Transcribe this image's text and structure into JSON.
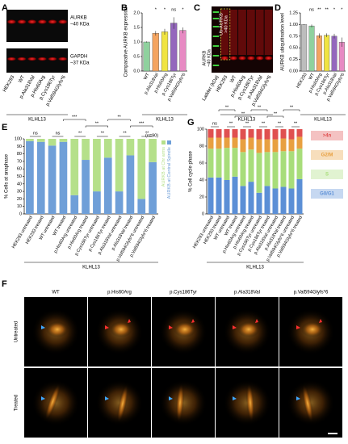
{
  "panel_labels": [
    "A",
    "B",
    "C",
    "D",
    "E",
    "F",
    "G"
  ],
  "blot_a": {
    "labels": [
      "AURKB",
      "~40 KDa",
      "GAPDH",
      "~37 KDa"
    ],
    "lanes": [
      "HEK293",
      "WT",
      "p.Ala318Val",
      "p.His60Arg",
      "p.Cys186Tyr",
      "p.Val594Glyfs*6"
    ],
    "group": "KLHL13"
  },
  "blot_c": {
    "labels": [
      "Ub-AURKB",
      ">40 KDa",
      "AURKB",
      "~40 KDa"
    ],
    "lanes": [
      "Ladder (kDa)",
      "HEK293",
      "WT",
      "p.His60Arg",
      "p.Cys186Tyr",
      "p.Ala318Val",
      "p.Val594Glyfs*6"
    ],
    "group": "KLHL13"
  },
  "chart_data": [
    {
      "type": "bar",
      "ylabel": "Comparative AURKB expression",
      "categories": [
        "WT",
        "p.Ala318Val",
        "p.His60Arg",
        "p.Cys186Tyr",
        "p.Val594Glyfs*6"
      ],
      "values": [
        1.0,
        1.3,
        1.35,
        1.65,
        1.4
      ],
      "errors": [
        0.02,
        0.08,
        0.1,
        0.2,
        0.1
      ],
      "colors": [
        "#8fd19e",
        "#f4a460",
        "#f0e442",
        "#9467bd",
        "#e78ac3"
      ],
      "ylim": [
        0,
        2
      ],
      "yticks": [
        {
          "value": 0,
          "label": "0.0"
        },
        0.5,
        {
          "value": 1,
          "label": "1.0"
        },
        1.5,
        {
          "value": 2,
          "label": "2.0"
        }
      ],
      "significance": [
        "*",
        "*",
        "ns",
        "*"
      ],
      "group": "KLHL13"
    },
    {
      "type": "bar",
      "ylabel": "AURKB ubiquitination level",
      "categories": [
        "HEK293",
        "WT",
        "p.His60Arg",
        "p.Cys186Tyr",
        "p.Ala318Val",
        "p.Val594Glyfs*6"
      ],
      "values": [
        1.0,
        0.97,
        0.76,
        0.77,
        0.75,
        0.62
      ],
      "errors": [
        0.01,
        0.03,
        0.05,
        0.04,
        0.05,
        0.1
      ],
      "colors": [
        "#bdbdbd",
        "#8fd19e",
        "#f4a460",
        "#f0e442",
        "#9467bd",
        "#e78ac3"
      ],
      "ylim": [
        0,
        1.25
      ],
      "yticks": [
        {
          "value": 0,
          "label": "0.00"
        },
        {
          "value": 0.25,
          "label": "0.25"
        },
        {
          "value": 0.5,
          "label": "0.50"
        },
        {
          "value": 0.75,
          "label": "0.75"
        },
        {
          "value": 1,
          "label": "1.00"
        },
        {
          "value": 1.25,
          "label": "1.25"
        }
      ],
      "significance": [
        "ns",
        "**",
        "**",
        "*",
        "*"
      ],
      "group": "KLHL13"
    },
    {
      "type": "stacked_bar",
      "ylabel": "% Cells at anaphase",
      "note": "(n=90)",
      "categories": [
        "HEK293 untreated",
        "HEK293 treated",
        "WT untreated",
        "WT treated",
        "p.His60Arg untreated",
        "p.His60Arg treated",
        "p.Cys186Tyr untreated",
        "p.Cys186Tyr treated",
        "p.Ala318Val untreated",
        "p.Ala318Val treated",
        "p.Val594Glyfs*6 untreated",
        "p.Val594Glyfs*6 treated"
      ],
      "series": [
        {
          "name": "AURKB at Central Spindle",
          "color": "#6f9fd8",
          "values": [
            97,
            96,
            91,
            96,
            25,
            72,
            30,
            75,
            30,
            78,
            20,
            69
          ]
        },
        {
          "name": "AURKB at Chr arms",
          "color": "#b5e08a",
          "values": [
            3,
            4,
            9,
            4,
            75,
            28,
            70,
            25,
            70,
            22,
            80,
            31
          ]
        }
      ],
      "ylim": [
        0,
        100
      ],
      "yticks": [
        0,
        10,
        20,
        30,
        40,
        50,
        60,
        70,
        80,
        90,
        100
      ],
      "significance": [
        "ns",
        "ns",
        "**",
        "**",
        "**",
        "**"
      ],
      "bracket_significance": [
        "***",
        "**",
        "**",
        "***"
      ],
      "group": "KLHL13"
    },
    {
      "type": "stacked_bar",
      "ylabel": "% Cell cycle phase",
      "categories": [
        "HEK293 untreated",
        "HEK293 treated",
        "WT untreated",
        "WT treated",
        "p.His60Arg untreated",
        "p.His60Arg treated",
        "p.Cys186Tyr untreated",
        "p.Cys186Tyr treated",
        "p.Ala318Val untreated",
        "p.Ala318Val treated",
        "p.Val594Glyfs*6 untreated",
        "p.Val594Glyfs*6 treated"
      ],
      "series": [
        {
          "name": "G0/G1",
          "color": "#5b8fd6",
          "values": [
            43,
            43,
            40,
            44,
            33,
            38,
            25,
            33,
            30,
            32,
            30,
            41
          ]
        },
        {
          "name": "S",
          "color": "#a8dd7a",
          "values": [
            34,
            34,
            38,
            34,
            40,
            38,
            47,
            40,
            43,
            42,
            44,
            36
          ]
        },
        {
          "name": "G2/M",
          "color": "#e8a040",
          "values": [
            13,
            13,
            12,
            12,
            15,
            14,
            16,
            15,
            15,
            15,
            14,
            14
          ]
        },
        {
          "name": ">4n",
          "color": "#e05050",
          "values": [
            10,
            10,
            10,
            10,
            12,
            10,
            12,
            12,
            12,
            11,
            12,
            9
          ]
        }
      ],
      "ylim": [
        0,
        100
      ],
      "yticks": [
        0,
        20,
        40,
        60,
        80,
        100
      ],
      "significance": [
        "ns",
        "**",
        "**",
        "**",
        "**",
        "**"
      ],
      "bracket_significance": [
        "**",
        "**",
        "**",
        "**",
        "**"
      ],
      "group": "KLHL13"
    }
  ],
  "micrographs": {
    "columns": [
      "WT",
      "p.His60Arg",
      "p.Cys186Tyr",
      "p.Ala318Val",
      "p.Val594Glyfs*6"
    ],
    "rows": [
      "Untreated",
      "Treated"
    ]
  }
}
